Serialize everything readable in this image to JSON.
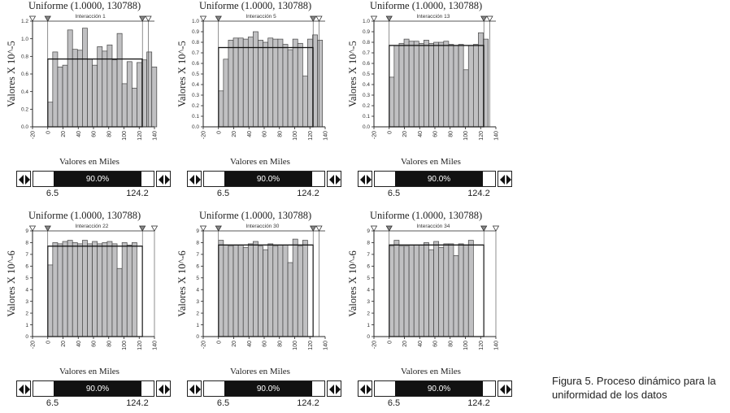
{
  "figure": {
    "caption_line1": "Figura 5. Proceso dinámico para la",
    "caption_line2": "uniformidad de los datos"
  },
  "colors": {
    "bar": "#c0c0c2",
    "axis": "#222222",
    "fill": "#111111"
  },
  "chart_data": [
    {
      "type": "bar",
      "title": "Uniforme (1.0000,  130788)",
      "subtitle": "Interacción 1",
      "xlabel": "Valores en Miles",
      "ylabel": "Valores X 10^-5",
      "xlim": [
        -20,
        140
      ],
      "ylim": [
        0,
        1.2
      ],
      "x_ticks": [
        -20,
        0,
        20,
        40,
        60,
        80,
        100,
        120,
        140
      ],
      "y_ticks": [
        0,
        0.2,
        0.4,
        0.6,
        0.8,
        1.0,
        1.2
      ],
      "y_tick_labels": [
        "0.0",
        "0.2",
        "0.4",
        "0.6",
        "0.8",
        "1.0",
        "1.2"
      ],
      "bin_start": 0,
      "bin_width": 6.5,
      "values": [
        0.28,
        0.85,
        0.68,
        0.7,
        1.1,
        0.88,
        0.87,
        1.12,
        0.77,
        0.7,
        0.91,
        0.86,
        0.93,
        0.76,
        1.06,
        0.49,
        0.74,
        0.44,
        0.73,
        0.76,
        0.85,
        0.68
      ],
      "uniform_level": 0.77,
      "marker_positions": [
        -20,
        0,
        124.2,
        132
      ],
      "slider": {
        "label": "90.0%",
        "low": "6.5",
        "high": "124.2"
      }
    },
    {
      "type": "bar",
      "title": "Uniforme (1.0000,  130788)",
      "subtitle": "Interacción 5",
      "xlabel": "",
      "ylabel": "Valores X 10^-5",
      "xlim": [
        -20,
        140
      ],
      "ylim": [
        0,
        1.0
      ],
      "x_ticks": [
        -20,
        0,
        20,
        40,
        60,
        80,
        100,
        120,
        140
      ],
      "y_ticks": [
        0,
        0.1,
        0.2,
        0.3,
        0.4,
        0.5,
        0.6,
        0.7,
        0.8,
        0.9,
        1.0
      ],
      "y_tick_labels": [
        "0.0",
        "0.1",
        "0.2",
        "0.3",
        "0.4",
        "0.5",
        "0.6",
        "0.7",
        "0.8",
        "0.9",
        "1.0"
      ],
      "bin_start": 0,
      "bin_width": 6.5,
      "values": [
        0.34,
        0.64,
        0.82,
        0.84,
        0.84,
        0.83,
        0.85,
        0.9,
        0.82,
        0.8,
        0.84,
        0.83,
        0.83,
        0.78,
        0.73,
        0.83,
        0.79,
        0.48,
        0.83,
        0.87,
        0.82
      ],
      "uniform_level": 0.75,
      "marker_positions": [
        -20,
        0,
        124.2,
        132
      ],
      "slider": {
        "label": "90.0%",
        "low": "6.5",
        "high": "124.2"
      }
    },
    {
      "type": "bar",
      "title": "Uniforme (1.0000,  130788)",
      "subtitle": "Interacción 13",
      "xlabel": "",
      "ylabel": "Valores X 10^-5",
      "xlim": [
        -20,
        140
      ],
      "ylim": [
        0,
        1.0
      ],
      "x_ticks": [
        -20,
        0,
        20,
        40,
        60,
        80,
        100,
        120,
        140
      ],
      "y_ticks": [
        0,
        0.1,
        0.2,
        0.3,
        0.4,
        0.5,
        0.6,
        0.7,
        0.8,
        0.9,
        1.0
      ],
      "y_tick_labels": [
        "0.0",
        "0.1",
        "0.2",
        "0.3",
        "0.4",
        "0.5",
        "0.6",
        "0.7",
        "0.8",
        "0.9",
        "1.0"
      ],
      "bin_start": 0,
      "bin_width": 6.5,
      "values": [
        0.47,
        0.77,
        0.79,
        0.83,
        0.81,
        0.81,
        0.79,
        0.82,
        0.79,
        0.8,
        0.8,
        0.81,
        0.78,
        0.77,
        0.78,
        0.54,
        0.77,
        0.78,
        0.89,
        0.83
      ],
      "uniform_level": 0.77,
      "marker_positions": [
        -20,
        0,
        124.2,
        132
      ],
      "slider": {
        "label": "90.0%",
        "low": "6.5",
        "high": "124.2"
      }
    },
    {
      "type": "bar",
      "title": "Uniforme (1.0000,  130788)",
      "subtitle": "Interacción 22",
      "xlabel": "Valores en Miles",
      "ylabel": "Valores X 10^-6",
      "xlim": [
        -20,
        140
      ],
      "ylim": [
        0,
        9
      ],
      "x_ticks": [
        -20,
        0,
        20,
        40,
        60,
        80,
        100,
        120,
        140
      ],
      "y_ticks": [
        0,
        1,
        2,
        3,
        4,
        5,
        6,
        7,
        8,
        9
      ],
      "y_tick_labels": [
        "0",
        "1",
        "2",
        "3",
        "4",
        "5",
        "6",
        "7",
        "8",
        "9"
      ],
      "bin_start": 0,
      "bin_width": 6.5,
      "values": [
        6.1,
        8.0,
        7.9,
        8.1,
        8.2,
        8.0,
        7.9,
        8.2,
        7.9,
        8.1,
        7.9,
        8.0,
        8.1,
        7.9,
        5.8,
        8.0,
        7.8,
        8.0
      ],
      "uniform_level": 7.7,
      "marker_positions": [
        -20,
        0,
        124.2,
        140
      ],
      "slider": {
        "label": "90.0%",
        "low": "6.5",
        "high": "124.2"
      }
    },
    {
      "type": "bar",
      "title": "Uniforme (1.0000,  130788)",
      "subtitle": "Interacción 30",
      "xlabel": "Valores en Miles",
      "ylabel": "Valores X 10^-6",
      "xlim": [
        -20,
        140
      ],
      "ylim": [
        0,
        9
      ],
      "x_ticks": [
        -20,
        0,
        20,
        40,
        60,
        80,
        100,
        120,
        140
      ],
      "y_ticks": [
        0,
        1,
        2,
        3,
        4,
        5,
        6,
        7,
        8,
        9
      ],
      "y_tick_labels": [
        "0",
        "1",
        "2",
        "3",
        "4",
        "5",
        "6",
        "7",
        "8",
        "9"
      ],
      "bin_start": 0,
      "bin_width": 6.5,
      "values": [
        8.2,
        7.8,
        7.7,
        7.8,
        7.8,
        7.6,
        7.9,
        8.1,
        7.7,
        7.4,
        7.9,
        7.7,
        7.8,
        7.8,
        6.3,
        8.3,
        7.7,
        8.2
      ],
      "uniform_level": 7.8,
      "marker_positions": [
        -20,
        0,
        124.2,
        132
      ],
      "slider": {
        "label": "90.0%",
        "low": "6.5",
        "high": "124.2"
      }
    },
    {
      "type": "bar",
      "title": "Uniforme (1.0000,  130788)",
      "subtitle": "Interacción 34",
      "xlabel": "Valores en Miles",
      "ylabel": "Valores X 10^-6",
      "xlim": [
        -20,
        140
      ],
      "ylim": [
        0,
        9
      ],
      "x_ticks": [
        -20,
        0,
        20,
        40,
        60,
        80,
        100,
        120,
        140
      ],
      "y_ticks": [
        0,
        1,
        2,
        3,
        4,
        5,
        6,
        7,
        8,
        9
      ],
      "y_tick_labels": [
        "0",
        "1",
        "2",
        "3",
        "4",
        "5",
        "6",
        "7",
        "8",
        "9"
      ],
      "bin_start": 0,
      "bin_width": 6.5,
      "values": [
        7.7,
        8.2,
        7.7,
        7.7,
        7.8,
        7.8,
        7.8,
        8.0,
        7.4,
        8.1,
        7.6,
        7.9,
        7.9,
        6.9,
        7.9,
        7.8,
        8.2
      ],
      "uniform_level": 7.8,
      "marker_positions": [
        -20,
        0,
        124.2,
        140
      ],
      "slider": {
        "label": "90.0%",
        "low": "6.5",
        "high": "124.2"
      }
    }
  ]
}
